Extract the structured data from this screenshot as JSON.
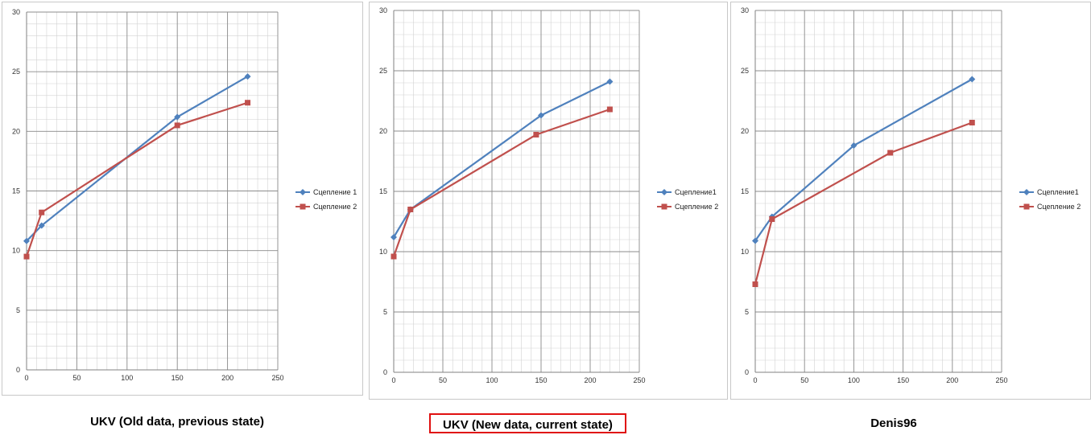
{
  "colors": {
    "series1": "#4F81BD",
    "series2": "#C0504D",
    "grid": "#8c8c8c",
    "minor_grid": "#d2d2d2"
  },
  "captions": [
    "UKV (Old data, previous state)",
    "UKV (New data, current state)",
    "Denis96"
  ],
  "chart_data": [
    {
      "type": "line",
      "xlim": [
        0,
        250
      ],
      "ylim": [
        0,
        30
      ],
      "xticks": [
        0,
        50,
        100,
        150,
        200,
        250
      ],
      "yticks": [
        0,
        5,
        10,
        15,
        20,
        25,
        30
      ],
      "grid": true,
      "legend_position": "right",
      "series": [
        {
          "name": "Сцепление 1",
          "marker": "diamond",
          "points": [
            [
              0,
              10.8
            ],
            [
              15,
              12.1
            ],
            [
              150,
              21.2
            ],
            [
              220,
              24.6
            ]
          ]
        },
        {
          "name": "Сцепление 2",
          "marker": "square",
          "points": [
            [
              0,
              9.5
            ],
            [
              15,
              13.2
            ],
            [
              150,
              20.5
            ],
            [
              220,
              22.4
            ]
          ]
        }
      ]
    },
    {
      "type": "line",
      "xlim": [
        0,
        250
      ],
      "ylim": [
        0,
        30
      ],
      "xticks": [
        0,
        50,
        100,
        150,
        200,
        250
      ],
      "yticks": [
        0,
        5,
        10,
        15,
        20,
        25,
        30
      ],
      "grid": true,
      "legend_position": "right",
      "series": [
        {
          "name": "Сцепление1",
          "marker": "diamond",
          "points": [
            [
              0,
              11.2
            ],
            [
              17,
              13.5
            ],
            [
              150,
              21.3
            ],
            [
              220,
              24.1
            ]
          ]
        },
        {
          "name": "Сцепление 2",
          "marker": "square",
          "points": [
            [
              0,
              9.6
            ],
            [
              17,
              13.5
            ],
            [
              145,
              19.7
            ],
            [
              220,
              21.8
            ]
          ]
        }
      ]
    },
    {
      "type": "line",
      "xlim": [
        0,
        250
      ],
      "ylim": [
        0,
        30
      ],
      "xticks": [
        0,
        50,
        100,
        150,
        200,
        250
      ],
      "yticks": [
        0,
        5,
        10,
        15,
        20,
        25,
        30
      ],
      "grid": true,
      "legend_position": "right",
      "series": [
        {
          "name": "Сцепление1",
          "marker": "diamond",
          "points": [
            [
              0,
              10.9
            ],
            [
              17,
              12.9
            ],
            [
              100,
              18.8
            ],
            [
              220,
              24.3
            ]
          ]
        },
        {
          "name": "Сцепление 2",
          "marker": "square",
          "points": [
            [
              0,
              7.3
            ],
            [
              17,
              12.7
            ],
            [
              137,
              18.2
            ],
            [
              220,
              20.7
            ]
          ]
        }
      ]
    }
  ]
}
